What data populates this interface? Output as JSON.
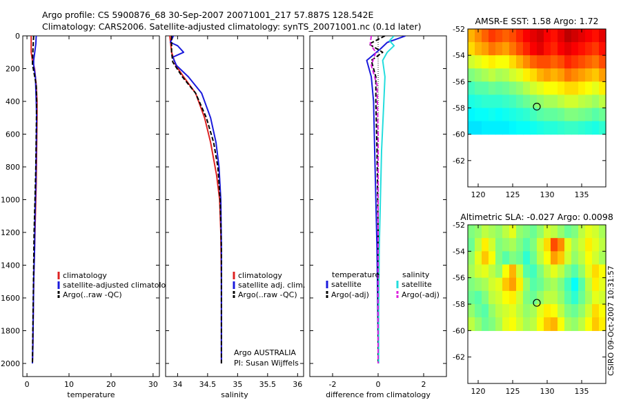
{
  "title": {
    "line1": "Argo profile: CS 5900876_68 30-Sep-2007 20071001_217 57.887S 128.542E",
    "line2": "Climatology: CARS2006. Satellite-adjusted climatology: synTS_20071001.nc (0.1d later)"
  },
  "footer": {
    "stamp": "CSIRO 09-Oct-2007 10:31:57",
    "argo_line1": "Argo AUSTRALIA",
    "argo_line2": "PI: Susan Wijffels"
  },
  "colors": {
    "climatology": "#dd2222",
    "satellite": "#1a1adc",
    "argo": "#000000",
    "salinity_satellite": "#22dddd",
    "salinity_argo": "#dd22dd",
    "missing": "#ffffff"
  },
  "chart_data": [
    {
      "id": "temperature",
      "type": "line",
      "xlabel": "temperature",
      "xlim": [
        -1,
        31.5
      ],
      "xticks": [
        0,
        10,
        20,
        30
      ],
      "xtick_labels": [
        "0",
        "10",
        "20",
        "30"
      ],
      "ylim": [
        0,
        2080
      ],
      "yticks": [
        0,
        200,
        400,
        600,
        800,
        1000,
        1200,
        1400,
        1600,
        1800,
        2000
      ],
      "ytick_labels": [
        "0",
        "200",
        "400",
        "600",
        "800",
        "1000",
        "1200",
        "1400",
        "1600",
        "1800",
        "2000"
      ],
      "legend": {
        "position": "bottom-right",
        "entries": [
          "climatology",
          "satellite-adjusted climatology",
          "Argo(..raw -QC)"
        ]
      },
      "series": [
        {
          "name": "climatology",
          "color": "#dd2222",
          "style": "solid",
          "x": [
            1.0,
            1.0,
            1.3,
            1.8,
            2.2,
            2.4,
            2.4,
            2.3,
            2.2,
            2.0,
            1.8,
            1.6,
            1.5,
            1.4,
            1.3
          ],
          "depth": [
            0,
            100,
            150,
            200,
            300,
            400,
            500,
            700,
            900,
            1100,
            1300,
            1500,
            1700,
            1900,
            2000
          ]
        },
        {
          "name": "satellite-adjusted climatology",
          "color": "#1a1adc",
          "style": "solid",
          "x": [
            2.2,
            2.1,
            1.6,
            1.6,
            2.0,
            2.2,
            2.3,
            2.2,
            2.1,
            1.9,
            1.8,
            1.6,
            1.5,
            1.4,
            1.3
          ],
          "depth": [
            0,
            50,
            150,
            180,
            250,
            400,
            500,
            700,
            900,
            1100,
            1300,
            1500,
            1700,
            1900,
            2000
          ]
        },
        {
          "name": "Argo(..raw -QC)",
          "color": "#000000",
          "style": "dash",
          "x": [
            1.6,
            1.5,
            1.4,
            1.3,
            1.5,
            2.2,
            2.3,
            2.2,
            2.1,
            1.9,
            1.7,
            1.6,
            1.5,
            1.4,
            1.3
          ],
          "depth": [
            0,
            50,
            100,
            170,
            200,
            300,
            400,
            600,
            800,
            1000,
            1200,
            1400,
            1600,
            1800,
            2000
          ]
        }
      ]
    },
    {
      "id": "salinity",
      "type": "line",
      "xlabel": "salinity",
      "xlim": [
        33.8,
        36.1
      ],
      "xticks": [
        34,
        34.5,
        35,
        35.5,
        36
      ],
      "xtick_labels": [
        "34",
        "34.5",
        "35",
        "35.5",
        "36"
      ],
      "ylim": [
        0,
        2080
      ],
      "legend": {
        "position": "bottom-right",
        "entries": [
          "climatology",
          "satellite adj. clim.",
          "Argo(..raw -QC)"
        ]
      },
      "series": [
        {
          "name": "climatology",
          "color": "#dd2222",
          "style": "solid",
          "x": [
            33.87,
            33.9,
            33.97,
            34.1,
            34.3,
            34.45,
            34.55,
            34.65,
            34.7,
            34.72,
            34.73,
            34.73,
            34.73
          ],
          "depth": [
            0,
            100,
            180,
            250,
            350,
            500,
            650,
            850,
            1000,
            1200,
            1500,
            1800,
            2000
          ]
        },
        {
          "name": "satellite adj. clim.",
          "color": "#1a1adc",
          "style": "solid",
          "x": [
            33.93,
            33.88,
            34.0,
            34.1,
            33.92,
            33.98,
            34.18,
            34.4,
            34.55,
            34.64,
            34.69,
            34.72,
            34.73,
            34.73,
            34.73
          ],
          "depth": [
            0,
            40,
            60,
            100,
            130,
            180,
            250,
            350,
            500,
            650,
            800,
            1000,
            1300,
            1700,
            2000
          ]
        },
        {
          "name": "Argo(..raw -QC)",
          "color": "#000000",
          "style": "dash",
          "x": [
            33.9,
            33.9,
            33.92,
            34.08,
            34.3,
            34.48,
            34.6,
            34.67,
            34.71,
            34.73,
            34.73
          ],
          "depth": [
            0,
            100,
            160,
            250,
            350,
            500,
            650,
            800,
            1000,
            1300,
            2000
          ]
        }
      ]
    },
    {
      "id": "difference",
      "type": "line",
      "xlabel": "difference from climatology",
      "xlim": [
        -3,
        3
      ],
      "xticks": [
        -2,
        0,
        2
      ],
      "xtick_labels": [
        "-2",
        "0",
        "2"
      ],
      "ylim": [
        0,
        2080
      ],
      "legend": {
        "position": "bottom",
        "temperature_header": "temperature",
        "salinity_header": "salinity",
        "entries": [
          "satellite",
          "Argo(-adj)",
          "satellite",
          "Argo(-adj)"
        ]
      },
      "series": [
        {
          "name": "temperature satellite",
          "color": "#1a1adc",
          "style": "solid",
          "x": [
            1.2,
            0.8,
            0.4,
            0.1,
            -0.5,
            -0.3,
            -0.2,
            -0.15,
            -0.1,
            -0.05,
            -0.02,
            0,
            0
          ],
          "depth": [
            0,
            20,
            40,
            80,
            150,
            250,
            400,
            700,
            1000,
            1300,
            1600,
            1900,
            2000
          ]
        },
        {
          "name": "temperature Argo(-adj)",
          "color": "#000000",
          "style": "dash",
          "x": [
            0.3,
            -0.4,
            0.2,
            -0.3,
            -0.1,
            -0.1,
            -0.05,
            0,
            0
          ],
          "depth": [
            0,
            50,
            100,
            150,
            250,
            400,
            700,
            1200,
            2000
          ]
        },
        {
          "name": "salinity satellite",
          "color": "#22dddd",
          "style": "solid",
          "x": [
            0.7,
            0.5,
            0.7,
            0.4,
            0.2,
            0.3,
            0.25,
            0.15,
            0.1,
            0.05,
            0.02,
            0.02
          ],
          "depth": [
            0,
            30,
            60,
            100,
            150,
            250,
            400,
            700,
            1000,
            1300,
            1700,
            2000
          ]
        },
        {
          "name": "salinity Argo(-adj)",
          "color": "#dd22dd",
          "style": "dash",
          "x": [
            -0.3,
            -0.35,
            -0.1,
            -0.3,
            -0.05,
            0,
            0
          ],
          "depth": [
            0,
            50,
            100,
            180,
            300,
            600,
            2000
          ]
        }
      ],
      "reference_line": {
        "x": 0,
        "style": "dotted"
      }
    },
    {
      "id": "sst_map",
      "type": "heatmap",
      "title": "AMSR-E SST: 1.58 Argo: 1.72",
      "xlim": [
        118.5,
        138.5
      ],
      "ylim": [
        -64,
        -52
      ],
      "xticks": [
        120,
        125,
        130,
        135
      ],
      "xtick_labels": [
        "120",
        "125",
        "130",
        "135"
      ],
      "yticks": [
        -52,
        -54,
        -56,
        -58,
        -60,
        -62
      ],
      "ytick_labels": [
        "-52",
        "-54",
        "-56",
        "-58",
        "-60",
        "-62"
      ],
      "data_extent_lat": [
        -60,
        -52
      ],
      "marker": {
        "lon": 128.5,
        "lat": -57.9
      },
      "palette": "jet",
      "grid_lon_step": 1,
      "grid_lat_step": 1,
      "values": [
        [
          0.7,
          0.74,
          0.78,
          0.82,
          0.8,
          0.78,
          0.8,
          0.84,
          0.88,
          0.9,
          0.92,
          0.88,
          0.86,
          0.9,
          0.94,
          0.92,
          0.9,
          0.88,
          0.86,
          0.9
        ],
        [
          0.66,
          0.7,
          0.72,
          0.76,
          0.74,
          0.72,
          0.76,
          0.8,
          0.84,
          0.88,
          0.9,
          0.86,
          0.84,
          0.88,
          0.9,
          0.88,
          0.86,
          0.84,
          0.82,
          0.86
        ],
        [
          0.58,
          0.6,
          0.62,
          0.64,
          0.62,
          0.62,
          0.66,
          0.7,
          0.74,
          0.78,
          0.8,
          0.8,
          0.78,
          0.8,
          0.84,
          0.82,
          0.8,
          0.78,
          0.76,
          0.8
        ],
        [
          0.5,
          0.52,
          0.54,
          0.56,
          0.54,
          0.55,
          0.58,
          0.6,
          0.64,
          0.66,
          0.7,
          0.72,
          0.7,
          0.72,
          0.76,
          0.74,
          0.72,
          0.7,
          0.68,
          0.72
        ],
        [
          0.44,
          0.46,
          0.46,
          0.48,
          0.47,
          0.48,
          0.5,
          0.52,
          0.55,
          0.58,
          0.6,
          0.62,
          0.62,
          0.64,
          0.66,
          0.66,
          0.64,
          0.62,
          0.6,
          0.64
        ],
        [
          0.4,
          0.41,
          0.42,
          0.42,
          0.42,
          0.43,
          0.44,
          0.46,
          0.48,
          0.5,
          0.52,
          0.54,
          0.54,
          0.56,
          0.58,
          0.58,
          0.56,
          0.55,
          0.53,
          0.56
        ],
        [
          0.37,
          0.38,
          0.38,
          0.39,
          0.38,
          0.39,
          0.4,
          0.41,
          0.42,
          0.44,
          0.46,
          0.47,
          0.47,
          0.48,
          0.5,
          0.5,
          0.49,
          0.48,
          0.46,
          0.48
        ],
        [
          0.35,
          0.35,
          0.36,
          0.36,
          0.36,
          0.36,
          0.37,
          0.38,
          0.38,
          0.39,
          0.4,
          0.41,
          0.41,
          0.42,
          0.43,
          0.43,
          0.42,
          0.41,
          0.4,
          0.42
        ]
      ]
    },
    {
      "id": "sla_map",
      "type": "heatmap",
      "title": "Altimetric SLA: -0.027 Argo: 0.0098",
      "xlim": [
        118.5,
        138.5
      ],
      "ylim": [
        -64,
        -52
      ],
      "xticks": [
        120,
        125,
        130,
        135
      ],
      "xtick_labels": [
        "120",
        "125",
        "130",
        "135"
      ],
      "yticks": [
        -52,
        -54,
        -56,
        -58,
        -60,
        -62
      ],
      "ytick_labels": [
        "-52",
        "-54",
        "-56",
        "-58",
        "-60",
        "-62"
      ],
      "data_extent_lat": [
        -60,
        -52
      ],
      "marker": {
        "lon": 128.5,
        "lat": -57.9
      },
      "palette": "jet",
      "grid_lon_step": 1,
      "grid_lat_step": 1,
      "values": [
        [
          0.5,
          0.52,
          0.56,
          0.54,
          0.52,
          0.56,
          0.6,
          0.52,
          0.5,
          0.48,
          0.52,
          0.58,
          0.56,
          0.52,
          0.48,
          0.5,
          0.56,
          0.6,
          0.58,
          0.54
        ],
        [
          0.48,
          0.56,
          0.64,
          0.58,
          0.5,
          0.52,
          0.54,
          0.5,
          0.46,
          0.5,
          0.58,
          0.66,
          0.8,
          0.74,
          0.6,
          0.54,
          0.58,
          0.64,
          0.6,
          0.56
        ],
        [
          0.52,
          0.6,
          0.68,
          0.62,
          0.5,
          0.46,
          0.5,
          0.48,
          0.42,
          0.48,
          0.56,
          0.62,
          0.72,
          0.68,
          0.58,
          0.52,
          0.56,
          0.62,
          0.58,
          0.54
        ],
        [
          0.54,
          0.58,
          0.6,
          0.56,
          0.52,
          0.62,
          0.7,
          0.58,
          0.46,
          0.44,
          0.5,
          0.56,
          0.6,
          0.56,
          0.5,
          0.46,
          0.52,
          0.6,
          0.66,
          0.62
        ],
        [
          0.5,
          0.52,
          0.54,
          0.58,
          0.6,
          0.68,
          0.72,
          0.64,
          0.52,
          0.46,
          0.48,
          0.52,
          0.54,
          0.5,
          0.44,
          0.38,
          0.46,
          0.56,
          0.64,
          0.6
        ],
        [
          0.48,
          0.46,
          0.5,
          0.56,
          0.58,
          0.62,
          0.64,
          0.58,
          0.5,
          0.48,
          0.52,
          0.56,
          0.56,
          0.52,
          0.46,
          0.42,
          0.48,
          0.54,
          0.6,
          0.58
        ],
        [
          0.52,
          0.48,
          0.46,
          0.52,
          0.56,
          0.58,
          0.6,
          0.56,
          0.52,
          0.54,
          0.6,
          0.64,
          0.62,
          0.56,
          0.5,
          0.48,
          0.52,
          0.58,
          0.66,
          0.62
        ],
        [
          0.56,
          0.52,
          0.48,
          0.5,
          0.54,
          0.6,
          0.62,
          0.58,
          0.54,
          0.56,
          0.62,
          0.68,
          0.7,
          0.62,
          0.54,
          0.52,
          0.56,
          0.62,
          0.68,
          0.64
        ]
      ]
    }
  ]
}
